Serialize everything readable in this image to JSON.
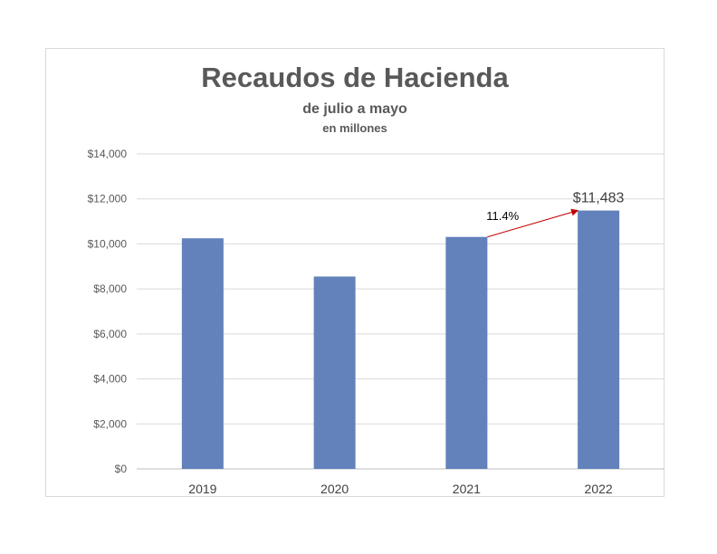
{
  "chart_data": {
    "type": "bar",
    "title": "Recaudos de Hacienda",
    "subtitle": "de julio a mayo",
    "unit_note": "en millones",
    "categories": [
      "2019",
      "2020",
      "2021",
      "2022"
    ],
    "values": [
      10250,
      8550,
      10310,
      11483
    ],
    "ylim": [
      0,
      14000
    ],
    "yticks": [
      0,
      2000,
      4000,
      6000,
      8000,
      10000,
      12000,
      14000
    ],
    "ytick_labels": [
      "$0",
      "$2,000",
      "$4,000",
      "$6,000",
      "$8,000",
      "$10,000",
      "$12,000",
      "$14,000"
    ],
    "grid": true,
    "legend": "none",
    "bar_color": "#6381bb",
    "data_label": {
      "category": "2022",
      "text": "$11,483"
    },
    "annotation": {
      "from": "2021",
      "to": "2022",
      "text": "11.4%",
      "color": "#c00000"
    }
  }
}
